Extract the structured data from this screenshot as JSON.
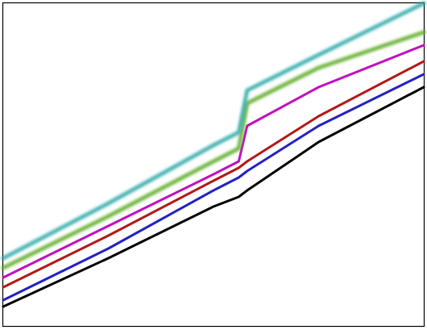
{
  "chart_data": {
    "type": "line",
    "x": [
      0,
      25,
      50,
      56,
      58,
      75,
      100
    ],
    "xlim": [
      0,
      100
    ],
    "ylim": [
      0,
      100
    ],
    "series": [
      {
        "color": "#000000",
        "values": [
          6,
          21,
          37,
          40,
          42,
          57,
          74
        ]
      },
      {
        "color": "#2222c4",
        "values": [
          8,
          24,
          42,
          46,
          48,
          62,
          78
        ]
      },
      {
        "color": "#b41818",
        "values": [
          12,
          28,
          45,
          49,
          51,
          65,
          82
        ]
      },
      {
        "color": "#c010c0",
        "values": [
          15,
          31,
          47,
          51,
          62,
          74,
          87
        ]
      },
      {
        "color": "#5aaa1e",
        "values": [
          18,
          34,
          51,
          55,
          69,
          80,
          91
        ]
      },
      {
        "color": "#2aa8a8",
        "values": [
          21,
          38,
          56,
          60,
          73,
          84,
          100
        ]
      }
    ]
  }
}
